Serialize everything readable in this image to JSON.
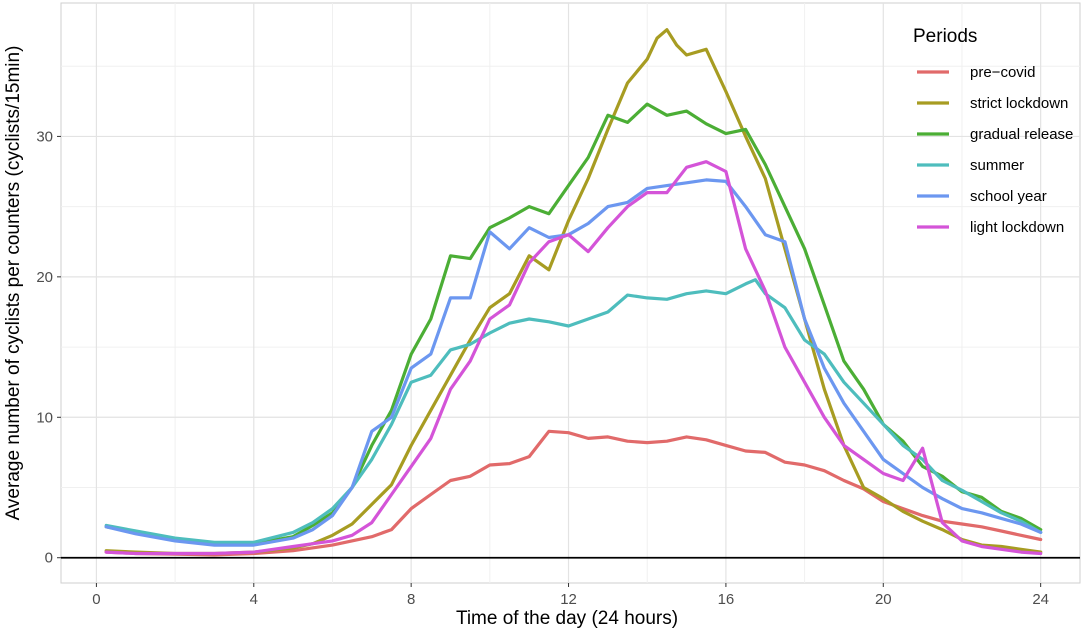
{
  "chart_data": {
    "type": "line",
    "title": "",
    "xlabel": "Time of the day (24 hours)",
    "ylabel": "Average number of cyclists per counters (cyclists/15min)",
    "xlim": [
      -0.9,
      25.0
    ],
    "ylim": [
      -1.8,
      39.5
    ],
    "xticks": [
      0,
      4,
      8,
      12,
      16,
      20,
      24
    ],
    "yticks": [
      0,
      10,
      20,
      30
    ],
    "grid": true,
    "zero_line": true,
    "legend": {
      "title": "Periods",
      "position": "top-right"
    },
    "series": [
      {
        "name": "pre−covid",
        "color": "#E16A6A",
        "points": [
          [
            0.25,
            0.4
          ],
          [
            1,
            0.3
          ],
          [
            2,
            0.25
          ],
          [
            3,
            0.2
          ],
          [
            4,
            0.3
          ],
          [
            5,
            0.5
          ],
          [
            6,
            0.9
          ],
          [
            7,
            1.5
          ],
          [
            7.5,
            2.0
          ],
          [
            8,
            3.5
          ],
          [
            8.5,
            4.5
          ],
          [
            9,
            5.5
          ],
          [
            9.5,
            5.8
          ],
          [
            10,
            6.6
          ],
          [
            10.5,
            6.7
          ],
          [
            11,
            7.2
          ],
          [
            11.25,
            8.1
          ],
          [
            11.5,
            9.0
          ],
          [
            12,
            8.9
          ],
          [
            12.5,
            8.5
          ],
          [
            13,
            8.6
          ],
          [
            13.5,
            8.3
          ],
          [
            14,
            8.2
          ],
          [
            14.5,
            8.3
          ],
          [
            15,
            8.6
          ],
          [
            15.5,
            8.4
          ],
          [
            16,
            8.0
          ],
          [
            16.5,
            7.6
          ],
          [
            17,
            7.5
          ],
          [
            17.5,
            6.8
          ],
          [
            18,
            6.6
          ],
          [
            18.5,
            6.2
          ],
          [
            19,
            5.5
          ],
          [
            19.5,
            4.9
          ],
          [
            20,
            4.0
          ],
          [
            20.5,
            3.5
          ],
          [
            21,
            3.0
          ],
          [
            21.5,
            2.6
          ],
          [
            22,
            2.4
          ],
          [
            22.5,
            2.2
          ],
          [
            23,
            1.9
          ],
          [
            23.5,
            1.6
          ],
          [
            24,
            1.3
          ]
        ]
      },
      {
        "name": "strict lockdown",
        "color": "#A79C22",
        "points": [
          [
            0.25,
            0.5
          ],
          [
            1,
            0.4
          ],
          [
            2,
            0.3
          ],
          [
            3,
            0.3
          ],
          [
            4,
            0.4
          ],
          [
            5,
            0.7
          ],
          [
            5.5,
            1.0
          ],
          [
            6,
            1.6
          ],
          [
            6.5,
            2.4
          ],
          [
            7,
            3.8
          ],
          [
            7.5,
            5.2
          ],
          [
            8,
            8.0
          ],
          [
            8.5,
            10.5
          ],
          [
            9,
            13.0
          ],
          [
            9.5,
            15.5
          ],
          [
            10,
            17.8
          ],
          [
            10.5,
            18.8
          ],
          [
            11,
            21.5
          ],
          [
            11.5,
            20.5
          ],
          [
            12,
            24.0
          ],
          [
            12.5,
            27.0
          ],
          [
            13,
            30.5
          ],
          [
            13.5,
            33.8
          ],
          [
            14,
            35.5
          ],
          [
            14.25,
            37.0
          ],
          [
            14.5,
            37.6
          ],
          [
            14.75,
            36.5
          ],
          [
            15,
            35.8
          ],
          [
            15.5,
            36.2
          ],
          [
            16,
            33.2
          ],
          [
            16.5,
            30.0
          ],
          [
            17,
            27.0
          ],
          [
            17.5,
            22.0
          ],
          [
            18,
            17.0
          ],
          [
            18.5,
            12.0
          ],
          [
            19,
            8.0
          ],
          [
            19.5,
            5.0
          ],
          [
            20,
            4.2
          ],
          [
            20.5,
            3.3
          ],
          [
            21,
            2.6
          ],
          [
            21.5,
            2.0
          ],
          [
            22,
            1.3
          ],
          [
            22.5,
            0.9
          ],
          [
            23,
            0.8
          ],
          [
            23.5,
            0.6
          ],
          [
            24,
            0.4
          ]
        ]
      },
      {
        "name": "gradual release",
        "color": "#4BAE35",
        "points": [
          [
            0.25,
            2.2
          ],
          [
            1,
            1.8
          ],
          [
            2,
            1.3
          ],
          [
            3,
            1.0
          ],
          [
            4,
            1.0
          ],
          [
            5,
            1.5
          ],
          [
            5.5,
            2.3
          ],
          [
            6,
            3.2
          ],
          [
            6.5,
            5.0
          ],
          [
            7,
            8.0
          ],
          [
            7.5,
            10.5
          ],
          [
            8,
            14.5
          ],
          [
            8.5,
            17.0
          ],
          [
            9,
            21.5
          ],
          [
            9.5,
            21.3
          ],
          [
            10,
            23.5
          ],
          [
            10.5,
            24.2
          ],
          [
            11,
            25.0
          ],
          [
            11.5,
            24.5
          ],
          [
            12,
            26.5
          ],
          [
            12.5,
            28.5
          ],
          [
            13,
            31.5
          ],
          [
            13.5,
            31.0
          ],
          [
            14,
            32.3
          ],
          [
            14.5,
            31.5
          ],
          [
            15,
            31.8
          ],
          [
            15.5,
            30.9
          ],
          [
            16,
            30.2
          ],
          [
            16.5,
            30.5
          ],
          [
            17,
            28.0
          ],
          [
            17.5,
            25.0
          ],
          [
            18,
            22.0
          ],
          [
            18.5,
            18.0
          ],
          [
            19,
            14.0
          ],
          [
            19.5,
            12.0
          ],
          [
            20,
            9.5
          ],
          [
            20.5,
            8.3
          ],
          [
            21,
            6.5
          ],
          [
            21.5,
            5.8
          ],
          [
            22,
            4.7
          ],
          [
            22.5,
            4.3
          ],
          [
            23,
            3.3
          ],
          [
            23.5,
            2.8
          ],
          [
            24,
            2.0
          ]
        ]
      },
      {
        "name": "summer",
        "color": "#4EBDBD",
        "points": [
          [
            0.25,
            2.3
          ],
          [
            1,
            1.9
          ],
          [
            2,
            1.4
          ],
          [
            3,
            1.1
          ],
          [
            4,
            1.1
          ],
          [
            5,
            1.8
          ],
          [
            5.5,
            2.5
          ],
          [
            6,
            3.5
          ],
          [
            6.5,
            5.0
          ],
          [
            7,
            7.0
          ],
          [
            7.5,
            9.5
          ],
          [
            8,
            12.5
          ],
          [
            8.5,
            13.0
          ],
          [
            9,
            14.8
          ],
          [
            9.5,
            15.2
          ],
          [
            10,
            16.0
          ],
          [
            10.5,
            16.7
          ],
          [
            11,
            17.0
          ],
          [
            11.5,
            16.8
          ],
          [
            12,
            16.5
          ],
          [
            12.5,
            17.0
          ],
          [
            13,
            17.5
          ],
          [
            13.5,
            18.7
          ],
          [
            14,
            18.5
          ],
          [
            14.5,
            18.4
          ],
          [
            15,
            18.8
          ],
          [
            15.5,
            19.0
          ],
          [
            16,
            18.8
          ],
          [
            16.5,
            19.5
          ],
          [
            16.75,
            19.8
          ],
          [
            17,
            18.8
          ],
          [
            17.5,
            17.8
          ],
          [
            18,
            15.5
          ],
          [
            18.5,
            14.5
          ],
          [
            19,
            12.5
          ],
          [
            19.5,
            11.0
          ],
          [
            20,
            9.5
          ],
          [
            20.5,
            8.0
          ],
          [
            21,
            7.0
          ],
          [
            21.5,
            5.5
          ],
          [
            22,
            4.8
          ],
          [
            22.5,
            4.0
          ],
          [
            23,
            3.2
          ],
          [
            23.5,
            2.6
          ],
          [
            24,
            1.8
          ]
        ]
      },
      {
        "name": "school year",
        "color": "#6C97F0",
        "points": [
          [
            0.25,
            2.2
          ],
          [
            1,
            1.7
          ],
          [
            2,
            1.2
          ],
          [
            3,
            0.9
          ],
          [
            4,
            0.9
          ],
          [
            5,
            1.4
          ],
          [
            5.5,
            2.0
          ],
          [
            6,
            3.0
          ],
          [
            6.5,
            5.0
          ],
          [
            7,
            9.0
          ],
          [
            7.5,
            10.0
          ],
          [
            8,
            13.5
          ],
          [
            8.5,
            14.5
          ],
          [
            9,
            18.5
          ],
          [
            9.5,
            18.5
          ],
          [
            10,
            23.2
          ],
          [
            10.5,
            22.0
          ],
          [
            11,
            23.5
          ],
          [
            11.5,
            22.8
          ],
          [
            12,
            23.0
          ],
          [
            12.5,
            23.8
          ],
          [
            13,
            25.0
          ],
          [
            13.5,
            25.3
          ],
          [
            14,
            26.3
          ],
          [
            14.5,
            26.5
          ],
          [
            15,
            26.7
          ],
          [
            15.5,
            26.9
          ],
          [
            16,
            26.8
          ],
          [
            16.5,
            25.0
          ],
          [
            17,
            23.0
          ],
          [
            17.5,
            22.5
          ],
          [
            18,
            17.0
          ],
          [
            18.5,
            13.5
          ],
          [
            19,
            11.0
          ],
          [
            19.5,
            9.0
          ],
          [
            20,
            7.0
          ],
          [
            20.5,
            6.0
          ],
          [
            21,
            5.0
          ],
          [
            21.5,
            4.2
          ],
          [
            22,
            3.5
          ],
          [
            22.5,
            3.2
          ],
          [
            23,
            2.8
          ],
          [
            23.5,
            2.4
          ],
          [
            24,
            1.8
          ]
        ]
      },
      {
        "name": "light lockdown",
        "color": "#D454D8",
        "points": [
          [
            0.25,
            0.4
          ],
          [
            1,
            0.3
          ],
          [
            2,
            0.3
          ],
          [
            3,
            0.3
          ],
          [
            4,
            0.4
          ],
          [
            5,
            0.8
          ],
          [
            5.5,
            1.0
          ],
          [
            6,
            1.2
          ],
          [
            6.5,
            1.6
          ],
          [
            7,
            2.5
          ],
          [
            7.5,
            4.5
          ],
          [
            8,
            6.5
          ],
          [
            8.5,
            8.5
          ],
          [
            9,
            12.0
          ],
          [
            9.5,
            14.0
          ],
          [
            10,
            17.0
          ],
          [
            10.5,
            18.0
          ],
          [
            11,
            21.0
          ],
          [
            11.5,
            22.5
          ],
          [
            12,
            23.0
          ],
          [
            12.5,
            21.8
          ],
          [
            13,
            23.5
          ],
          [
            13.5,
            25.0
          ],
          [
            14,
            26.0
          ],
          [
            14.5,
            26.0
          ],
          [
            15,
            27.8
          ],
          [
            15.5,
            28.2
          ],
          [
            16,
            27.5
          ],
          [
            16.5,
            22.0
          ],
          [
            17,
            19.0
          ],
          [
            17.5,
            15.0
          ],
          [
            18,
            12.5
          ],
          [
            18.5,
            10.0
          ],
          [
            19,
            8.0
          ],
          [
            19.5,
            7.0
          ],
          [
            20,
            6.0
          ],
          [
            20.5,
            5.5
          ],
          [
            21,
            7.8
          ],
          [
            21.5,
            2.5
          ],
          [
            22,
            1.2
          ],
          [
            22.5,
            0.8
          ],
          [
            23,
            0.6
          ],
          [
            23.5,
            0.4
          ],
          [
            24,
            0.3
          ]
        ]
      }
    ]
  }
}
